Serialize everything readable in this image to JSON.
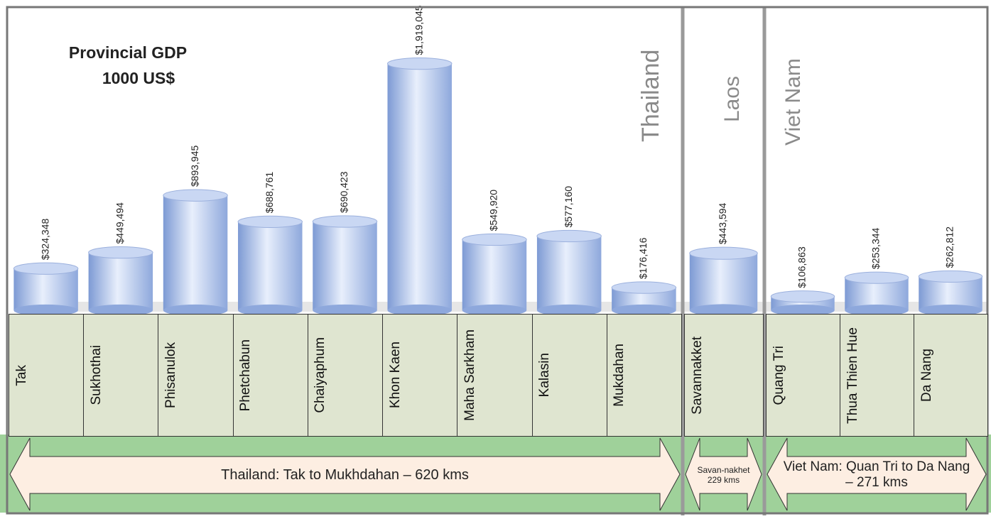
{
  "chart_data": {
    "type": "bar",
    "title": "Provincial GDP",
    "subtitle": "1000 US$",
    "ylim": [
      0,
      2000000
    ],
    "color": "#9bb4e6",
    "groups": [
      {
        "label": "Thailand",
        "route": "Thailand: Tak to Mukhdahan – 620 kms",
        "categories": [
          "Tak",
          "Sukhothai",
          "Phisanulok",
          "Phetchabun",
          "Chaiyaphum",
          "Khon Kaen",
          "Maha Sarkham",
          "Kalasin",
          "Mukdahan"
        ],
        "values": [
          324348,
          449494,
          893945,
          688761,
          690423,
          1919045,
          549920,
          577160,
          176416
        ],
        "value_labels": [
          "$324,348",
          "$449,494",
          "$893,945",
          "$688,761",
          "$690,423",
          "$1,919,045",
          "$549,920",
          "$577,160",
          "$176,416"
        ]
      },
      {
        "label": "Laos",
        "route": "Savan-nakhet 229 kms",
        "categories": [
          "Savannakket"
        ],
        "values": [
          443594
        ],
        "value_labels": [
          "$443,594"
        ]
      },
      {
        "label": "Viet Nam",
        "route": "Viet Nam: Quan Tri to Da Nang – 271 kms",
        "categories": [
          "Quang Tri",
          "Thua Thien Hue",
          "Da Nang"
        ],
        "values": [
          106863,
          253344,
          262812
        ],
        "value_labels": [
          "$106,863",
          "$253,344",
          "$262,812"
        ]
      }
    ]
  }
}
